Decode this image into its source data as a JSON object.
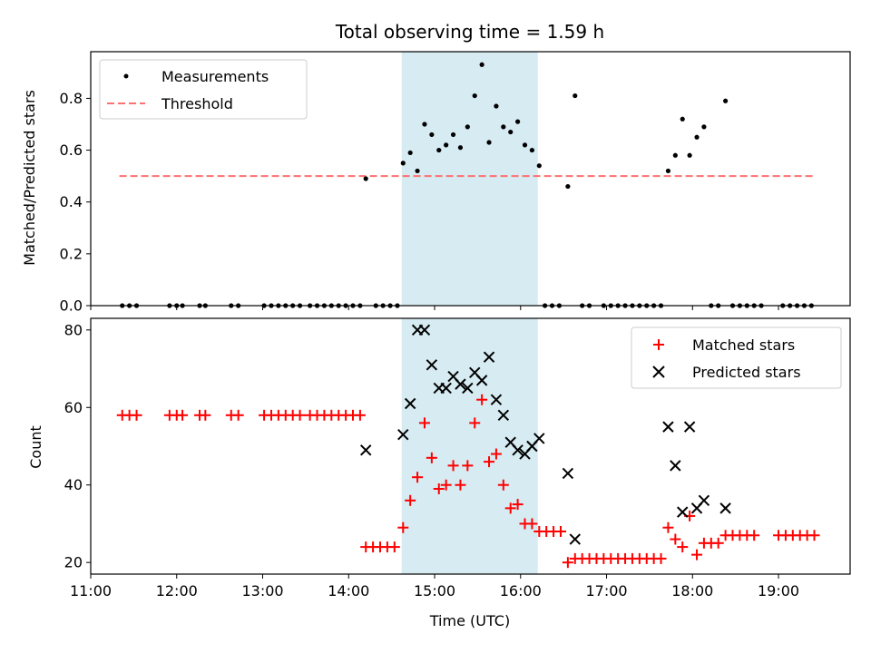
{
  "chart_data": [
    {
      "type": "scatter",
      "title": "Total observing time = 1.59 h",
      "ylabel": "Matched/Predicted stars",
      "xlim": [
        "11:00",
        "19:50"
      ],
      "ylim": [
        0,
        0.98
      ],
      "yticks": [
        "0.0",
        "0.2",
        "0.4",
        "0.6",
        "0.8"
      ],
      "grid": false,
      "legend_position": "top-left",
      "legend": [
        {
          "name": "Measurements",
          "marker": "dot",
          "color": "#000000"
        },
        {
          "name": "Threshold",
          "marker": "dashed-line",
          "color": "#ff7070"
        }
      ],
      "shaded_interval": {
        "start": "14:37",
        "end": "16:12",
        "color": "#add8e6"
      },
      "threshold": {
        "value": 0.5,
        "x_start": "11:20",
        "x_end": "19:25"
      },
      "series": [
        {
          "name": "Measurements",
          "points": [
            [
              "11:22",
              0
            ],
            [
              "11:27",
              0
            ],
            [
              "11:32",
              0
            ],
            [
              "11:55",
              0
            ],
            [
              "12:00",
              0
            ],
            [
              "12:04",
              0
            ],
            [
              "12:16",
              0
            ],
            [
              "12:20",
              0
            ],
            [
              "12:38",
              0
            ],
            [
              "12:43",
              0
            ],
            [
              "13:01",
              0
            ],
            [
              "13:06",
              0
            ],
            [
              "13:11",
              0
            ],
            [
              "13:16",
              0
            ],
            [
              "13:21",
              0
            ],
            [
              "13:26",
              0
            ],
            [
              "13:33",
              0
            ],
            [
              "13:38",
              0
            ],
            [
              "13:43",
              0
            ],
            [
              "13:48",
              0
            ],
            [
              "13:53",
              0
            ],
            [
              "13:58",
              0
            ],
            [
              "14:03",
              0
            ],
            [
              "14:08",
              0
            ],
            [
              "14:12",
              0.49
            ],
            [
              "14:19",
              0
            ],
            [
              "14:24",
              0
            ],
            [
              "14:29",
              0
            ],
            [
              "14:34",
              0
            ],
            [
              "14:38",
              0.55
            ],
            [
              "14:43",
              0.59
            ],
            [
              "14:48",
              0.52
            ],
            [
              "14:53",
              0.7
            ],
            [
              "14:58",
              0.66
            ],
            [
              "15:03",
              0.6
            ],
            [
              "15:08",
              0.62
            ],
            [
              "15:13",
              0.66
            ],
            [
              "15:18",
              0.61
            ],
            [
              "15:23",
              0.69
            ],
            [
              "15:28",
              0.81
            ],
            [
              "15:33",
              0.93
            ],
            [
              "15:38",
              0.63
            ],
            [
              "15:43",
              0.77
            ],
            [
              "15:48",
              0.69
            ],
            [
              "15:53",
              0.67
            ],
            [
              "15:58",
              0.71
            ],
            [
              "16:03",
              0.62
            ],
            [
              "16:08",
              0.6
            ],
            [
              "16:13",
              0.54
            ],
            [
              "16:17",
              0
            ],
            [
              "16:22",
              0
            ],
            [
              "16:27",
              0
            ],
            [
              "16:33",
              0.46
            ],
            [
              "16:38",
              0.81
            ],
            [
              "16:43",
              0
            ],
            [
              "16:48",
              0
            ],
            [
              "16:58",
              0
            ],
            [
              "17:03",
              0
            ],
            [
              "17:08",
              0
            ],
            [
              "17:13",
              0
            ],
            [
              "17:18",
              0
            ],
            [
              "17:23",
              0
            ],
            [
              "17:28",
              0
            ],
            [
              "17:33",
              0
            ],
            [
              "17:38",
              0
            ],
            [
              "17:43",
              0.52
            ],
            [
              "17:48",
              0.58
            ],
            [
              "17:53",
              0.72
            ],
            [
              "17:58",
              0.58
            ],
            [
              "18:03",
              0.65
            ],
            [
              "18:08",
              0.69
            ],
            [
              "18:13",
              0
            ],
            [
              "18:18",
              0
            ],
            [
              "18:23",
              0.79
            ],
            [
              "18:28",
              0
            ],
            [
              "18:33",
              0
            ],
            [
              "18:38",
              0
            ],
            [
              "18:43",
              0
            ],
            [
              "18:48",
              0
            ],
            [
              "19:03",
              0
            ],
            [
              "19:08",
              0
            ],
            [
              "19:13",
              0
            ],
            [
              "19:18",
              0
            ],
            [
              "19:23",
              0
            ]
          ]
        }
      ]
    },
    {
      "type": "scatter",
      "xlabel": "Time (UTC)",
      "ylabel": "Count",
      "xlim": [
        "11:00",
        "19:50"
      ],
      "ylim": [
        17,
        83
      ],
      "xticks": [
        "11:00",
        "12:00",
        "13:00",
        "14:00",
        "15:00",
        "16:00",
        "17:00",
        "18:00",
        "19:00"
      ],
      "yticks": [
        "20",
        "40",
        "60",
        "80"
      ],
      "grid": false,
      "legend_position": "top-right",
      "legend": [
        {
          "name": "Matched stars",
          "marker": "plus",
          "color": "#ff0000"
        },
        {
          "name": "Predicted stars",
          "marker": "x",
          "color": "#000000"
        }
      ],
      "shaded_interval": {
        "start": "14:37",
        "end": "16:12",
        "color": "#add8e6"
      },
      "series": [
        {
          "name": "Matched stars",
          "marker": "plus",
          "color": "#ff0000",
          "points": [
            [
              "11:22",
              58
            ],
            [
              "11:27",
              58
            ],
            [
              "11:32",
              58
            ],
            [
              "11:55",
              58
            ],
            [
              "12:00",
              58
            ],
            [
              "12:04",
              58
            ],
            [
              "12:16",
              58
            ],
            [
              "12:20",
              58
            ],
            [
              "12:38",
              58
            ],
            [
              "12:43",
              58
            ],
            [
              "13:01",
              58
            ],
            [
              "13:06",
              58
            ],
            [
              "13:11",
              58
            ],
            [
              "13:16",
              58
            ],
            [
              "13:21",
              58
            ],
            [
              "13:26",
              58
            ],
            [
              "13:33",
              58
            ],
            [
              "13:38",
              58
            ],
            [
              "13:43",
              58
            ],
            [
              "13:48",
              58
            ],
            [
              "13:53",
              58
            ],
            [
              "13:58",
              58
            ],
            [
              "14:03",
              58
            ],
            [
              "14:08",
              58
            ],
            [
              "14:12",
              24
            ],
            [
              "14:17",
              24
            ],
            [
              "14:22",
              24
            ],
            [
              "14:27",
              24
            ],
            [
              "14:32",
              24
            ],
            [
              "14:38",
              29
            ],
            [
              "14:43",
              36
            ],
            [
              "14:48",
              42
            ],
            [
              "14:53",
              56
            ],
            [
              "14:58",
              47
            ],
            [
              "15:03",
              39
            ],
            [
              "15:08",
              40
            ],
            [
              "15:13",
              45
            ],
            [
              "15:18",
              40
            ],
            [
              "15:23",
              45
            ],
            [
              "15:28",
              56
            ],
            [
              "15:33",
              62
            ],
            [
              "15:38",
              46
            ],
            [
              "15:43",
              48
            ],
            [
              "15:48",
              40
            ],
            [
              "15:53",
              34
            ],
            [
              "15:58",
              35
            ],
            [
              "16:03",
              30
            ],
            [
              "16:08",
              30
            ],
            [
              "16:13",
              28
            ],
            [
              "16:18",
              28
            ],
            [
              "16:23",
              28
            ],
            [
              "16:28",
              28
            ],
            [
              "16:33",
              20
            ],
            [
              "16:38",
              21
            ],
            [
              "16:43",
              21
            ],
            [
              "16:48",
              21
            ],
            [
              "16:53",
              21
            ],
            [
              "16:58",
              21
            ],
            [
              "17:03",
              21
            ],
            [
              "17:08",
              21
            ],
            [
              "17:13",
              21
            ],
            [
              "17:18",
              21
            ],
            [
              "17:23",
              21
            ],
            [
              "17:28",
              21
            ],
            [
              "17:33",
              21
            ],
            [
              "17:38",
              21
            ],
            [
              "17:43",
              29
            ],
            [
              "17:48",
              26
            ],
            [
              "17:53",
              24
            ],
            [
              "17:58",
              32
            ],
            [
              "18:03",
              22
            ],
            [
              "18:08",
              25
            ],
            [
              "18:13",
              25
            ],
            [
              "18:18",
              25
            ],
            [
              "18:23",
              27
            ],
            [
              "18:28",
              27
            ],
            [
              "18:33",
              27
            ],
            [
              "18:38",
              27
            ],
            [
              "18:43",
              27
            ],
            [
              "19:00",
              27
            ],
            [
              "19:05",
              27
            ],
            [
              "19:10",
              27
            ],
            [
              "19:15",
              27
            ],
            [
              "19:20",
              27
            ],
            [
              "19:25",
              27
            ]
          ]
        },
        {
          "name": "Predicted stars",
          "marker": "x",
          "color": "#000000",
          "points": [
            [
              "14:12",
              49
            ],
            [
              "14:38",
              53
            ],
            [
              "14:43",
              61
            ],
            [
              "14:48",
              80
            ],
            [
              "14:53",
              80
            ],
            [
              "14:58",
              71
            ],
            [
              "15:03",
              65
            ],
            [
              "15:08",
              65
            ],
            [
              "15:13",
              68
            ],
            [
              "15:18",
              66
            ],
            [
              "15:23",
              65
            ],
            [
              "15:28",
              69
            ],
            [
              "15:33",
              67
            ],
            [
              "15:38",
              73
            ],
            [
              "15:43",
              62
            ],
            [
              "15:48",
              58
            ],
            [
              "15:53",
              51
            ],
            [
              "15:58",
              49
            ],
            [
              "16:03",
              48
            ],
            [
              "16:08",
              50
            ],
            [
              "16:13",
              52
            ],
            [
              "16:33",
              43
            ],
            [
              "16:38",
              26
            ],
            [
              "17:43",
              55
            ],
            [
              "17:48",
              45
            ],
            [
              "17:53",
              33
            ],
            [
              "17:58",
              55
            ],
            [
              "18:03",
              34
            ],
            [
              "18:08",
              36
            ],
            [
              "18:23",
              34
            ]
          ]
        }
      ]
    }
  ]
}
